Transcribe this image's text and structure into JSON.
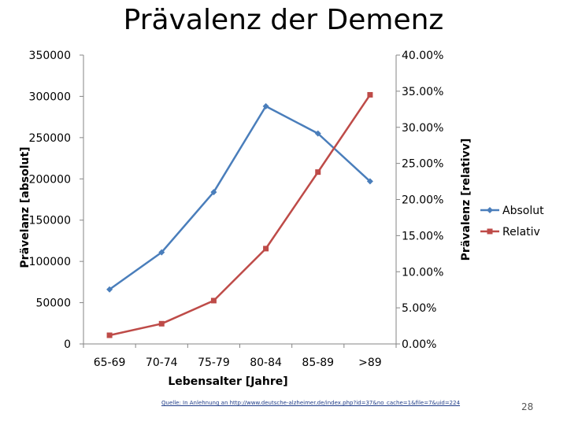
{
  "slide": {
    "title": "Prävalenz der Demenz",
    "source": "Quelle: In Anlehnung an http://www.deutsche-alzheimer.de/index.php?id=37&no_cache=1&file=7&uid=224",
    "page_number": "28"
  },
  "chart_data": {
    "type": "line",
    "categories": [
      "65-69",
      "70-74",
      "75-79",
      "80-84",
      "85-89",
      ">89"
    ],
    "xlabel": "Lebensalter [Jahre]",
    "ylabel_left": "Prävelanz [absolut]",
    "ylabel_right": "Prävalenz [relativv]",
    "ylim_left": [
      0,
      350000
    ],
    "ylim_right": [
      0,
      0.4
    ],
    "yticks_left": [
      "0",
      "50000",
      "100000",
      "150000",
      "200000",
      "250000",
      "300000",
      "350000"
    ],
    "yticks_right": [
      "0.00%",
      "5.00%",
      "10.00%",
      "15.00%",
      "20.00%",
      "25.00%",
      "30.00%",
      "35.00%",
      "40.00%"
    ],
    "grid": false,
    "legend_position": "right",
    "series": [
      {
        "name": "Absolut",
        "axis": "left",
        "color": "#4a7ebb",
        "marker": "diamond",
        "values": [
          66000,
          111000,
          184000,
          288000,
          255000,
          197000
        ]
      },
      {
        "name": "Relativ",
        "axis": "right",
        "color": "#be4b48",
        "marker": "square",
        "values": [
          0.012,
          0.028,
          0.06,
          0.132,
          0.238,
          0.345
        ]
      }
    ]
  }
}
